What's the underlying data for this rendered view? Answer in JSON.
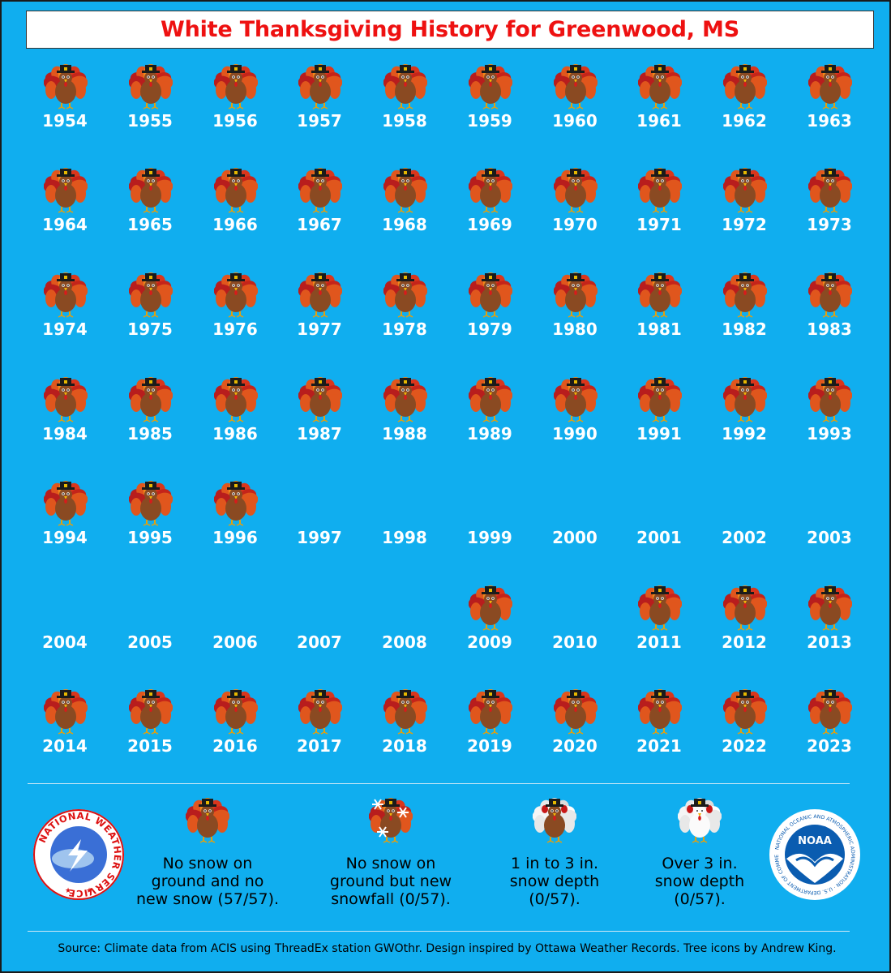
{
  "title": "White Thanksgiving History for Greenwood, MS",
  "colors": {
    "background": "#10aeef",
    "title": "#ee1111",
    "year_text": "#ffffff"
  },
  "years": [
    {
      "year": "1954",
      "icon": "turkey"
    },
    {
      "year": "1955",
      "icon": "turkey"
    },
    {
      "year": "1956",
      "icon": "turkey"
    },
    {
      "year": "1957",
      "icon": "turkey"
    },
    {
      "year": "1958",
      "icon": "turkey"
    },
    {
      "year": "1959",
      "icon": "turkey"
    },
    {
      "year": "1960",
      "icon": "turkey"
    },
    {
      "year": "1961",
      "icon": "turkey"
    },
    {
      "year": "1962",
      "icon": "turkey"
    },
    {
      "year": "1963",
      "icon": "turkey"
    },
    {
      "year": "1964",
      "icon": "turkey"
    },
    {
      "year": "1965",
      "icon": "turkey"
    },
    {
      "year": "1966",
      "icon": "turkey"
    },
    {
      "year": "1967",
      "icon": "turkey"
    },
    {
      "year": "1968",
      "icon": "turkey"
    },
    {
      "year": "1969",
      "icon": "turkey"
    },
    {
      "year": "1970",
      "icon": "turkey"
    },
    {
      "year": "1971",
      "icon": "turkey"
    },
    {
      "year": "1972",
      "icon": "turkey"
    },
    {
      "year": "1973",
      "icon": "turkey"
    },
    {
      "year": "1974",
      "icon": "turkey"
    },
    {
      "year": "1975",
      "icon": "turkey"
    },
    {
      "year": "1976",
      "icon": "turkey"
    },
    {
      "year": "1977",
      "icon": "turkey"
    },
    {
      "year": "1978",
      "icon": "turkey"
    },
    {
      "year": "1979",
      "icon": "turkey"
    },
    {
      "year": "1980",
      "icon": "turkey"
    },
    {
      "year": "1981",
      "icon": "turkey"
    },
    {
      "year": "1982",
      "icon": "turkey"
    },
    {
      "year": "1983",
      "icon": "turkey"
    },
    {
      "year": "1984",
      "icon": "turkey"
    },
    {
      "year": "1985",
      "icon": "turkey"
    },
    {
      "year": "1986",
      "icon": "turkey"
    },
    {
      "year": "1987",
      "icon": "turkey"
    },
    {
      "year": "1988",
      "icon": "turkey"
    },
    {
      "year": "1989",
      "icon": "turkey"
    },
    {
      "year": "1990",
      "icon": "turkey"
    },
    {
      "year": "1991",
      "icon": "turkey"
    },
    {
      "year": "1992",
      "icon": "turkey"
    },
    {
      "year": "1993",
      "icon": "turkey"
    },
    {
      "year": "1994",
      "icon": "turkey"
    },
    {
      "year": "1995",
      "icon": "turkey"
    },
    {
      "year": "1996",
      "icon": "turkey"
    },
    {
      "year": "1997",
      "icon": "none"
    },
    {
      "year": "1998",
      "icon": "none"
    },
    {
      "year": "1999",
      "icon": "none"
    },
    {
      "year": "2000",
      "icon": "none"
    },
    {
      "year": "2001",
      "icon": "none"
    },
    {
      "year": "2002",
      "icon": "none"
    },
    {
      "year": "2003",
      "icon": "none"
    },
    {
      "year": "2004",
      "icon": "none"
    },
    {
      "year": "2005",
      "icon": "none"
    },
    {
      "year": "2006",
      "icon": "none"
    },
    {
      "year": "2007",
      "icon": "none"
    },
    {
      "year": "2008",
      "icon": "none"
    },
    {
      "year": "2009",
      "icon": "turkey"
    },
    {
      "year": "2010",
      "icon": "none"
    },
    {
      "year": "2011",
      "icon": "turkey"
    },
    {
      "year": "2012",
      "icon": "turkey"
    },
    {
      "year": "2013",
      "icon": "turkey"
    },
    {
      "year": "2014",
      "icon": "turkey"
    },
    {
      "year": "2015",
      "icon": "turkey"
    },
    {
      "year": "2016",
      "icon": "turkey"
    },
    {
      "year": "2017",
      "icon": "turkey"
    },
    {
      "year": "2018",
      "icon": "turkey"
    },
    {
      "year": "2019",
      "icon": "turkey"
    },
    {
      "year": "2020",
      "icon": "turkey"
    },
    {
      "year": "2021",
      "icon": "turkey"
    },
    {
      "year": "2022",
      "icon": "turkey"
    },
    {
      "year": "2023",
      "icon": "turkey"
    }
  ],
  "legend": [
    {
      "icon": "turkey",
      "text": "No snow on\nground and no\nnew snow (57/57)."
    },
    {
      "icon": "turkey-snowflakes",
      "text": "No snow on\nground but new\nsnowfall (0/57)."
    },
    {
      "icon": "turkey-light-snow",
      "text": "1 in to 3 in.\nsnow depth\n(0/57)."
    },
    {
      "icon": "turkey-heavy-snow",
      "text": "Over 3 in.\nsnow depth\n(0/57)."
    }
  ],
  "logos": {
    "nws": {
      "icon": "nws-logo",
      "text": "NATIONAL WEATHER SERVICE"
    },
    "noaa": {
      "icon": "noaa-logo",
      "text": "NOAA",
      "ring_text": "NATIONAL OCEANIC AND ATMOSPHERIC ADMINISTRATION · U.S. DEPARTMENT OF COMMERCE"
    }
  },
  "source": "Source: Climate data from ACIS using ThreadEx station GWOthr. Design inspired by Ottawa Weather Records. Tree icons by Andrew King."
}
